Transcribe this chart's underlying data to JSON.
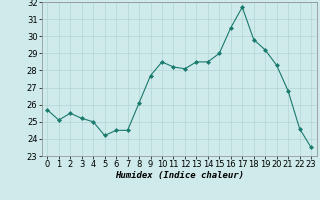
{
  "x": [
    0,
    1,
    2,
    3,
    4,
    5,
    6,
    7,
    8,
    9,
    10,
    11,
    12,
    13,
    14,
    15,
    16,
    17,
    18,
    19,
    20,
    21,
    22,
    23
  ],
  "y": [
    25.7,
    25.1,
    25.5,
    25.2,
    25.0,
    24.2,
    24.5,
    24.5,
    26.1,
    27.7,
    28.5,
    28.2,
    28.1,
    28.5,
    28.5,
    29.0,
    30.5,
    31.7,
    29.8,
    29.2,
    28.3,
    26.8,
    24.6,
    23.5
  ],
  "line_color": "#1a7a6e",
  "marker": "D",
  "marker_size": 2.0,
  "bg_color": "#ceeaea",
  "grid_color": "#b8d8d8",
  "xlabel": "Humidex (Indice chaleur)",
  "ylim": [
    23,
    32
  ],
  "xlim": [
    -0.5,
    23.5
  ],
  "yticks": [
    23,
    24,
    25,
    26,
    27,
    28,
    29,
    30,
    31,
    32
  ],
  "xticks": [
    0,
    1,
    2,
    3,
    4,
    5,
    6,
    7,
    8,
    9,
    10,
    11,
    12,
    13,
    14,
    15,
    16,
    17,
    18,
    19,
    20,
    21,
    22,
    23
  ],
  "xlabel_fontsize": 6.5,
  "tick_fontsize": 6.0
}
